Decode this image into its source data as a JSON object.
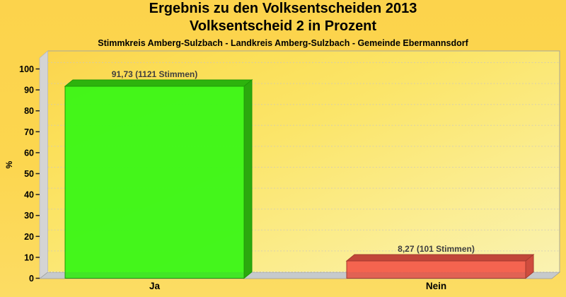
{
  "title": {
    "line1": "Ergebnis zu den Volksentscheiden 2013",
    "line2": "Volksentscheid 2 in Prozent"
  },
  "subtitle": "Stimmkreis Amberg-Sulzbach - Landkreis Amberg-Sulzbach - Gemeinde Ebermannsdorf",
  "chart_data": {
    "type": "bar",
    "categories": [
      "Ja",
      "Nein"
    ],
    "values": [
      91.73,
      8.27
    ],
    "value_labels": [
      "91,73 (1121 Stimmen)",
      "8,27 (101 Stimmen)"
    ],
    "votes": [
      1121,
      101
    ],
    "title": "Ergebnis zu den Volksentscheiden 2013 - Volksentscheid 2 in Prozent",
    "xlabel": "",
    "ylabel": "%",
    "ylim": [
      0,
      100
    ],
    "yticks": [
      0,
      10,
      20,
      30,
      40,
      50,
      60,
      70,
      80,
      90,
      100
    ],
    "grid": "horizontal dashed",
    "style": "3d-bars",
    "legend": "none",
    "bar_colors": [
      {
        "front": "#3AF716",
        "top": "#2DB30D",
        "side": "#2BA90E",
        "edge": "#1E9906"
      },
      {
        "front": "#F35C4B",
        "top": "#C14539",
        "side": "#CF4C3E",
        "edge": "#A43A2E"
      }
    ]
  },
  "colors": {
    "background_top": "#FCD34C",
    "background_bottom": "#FCDC64",
    "plot_gradient": [
      "#FBD44E",
      "#FBDF58",
      "#FBE56A",
      "#FBEC8C",
      "#FAF2B2"
    ],
    "wall": "#D4D4D4",
    "floor": "#C6CACC",
    "gridline": "#CBC7BF",
    "gridline_on_floor": "#E6E3DA",
    "frame_border": "#A9A99B",
    "value_label_color": "#3F3F3F",
    "text_color": "#000000"
  }
}
